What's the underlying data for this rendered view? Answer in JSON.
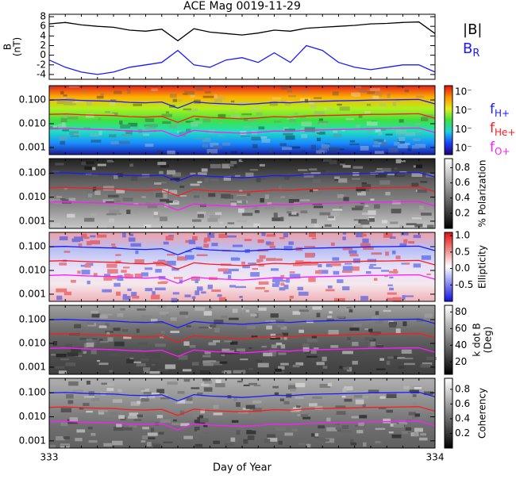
{
  "chart_data": {
    "type": "multi-panel",
    "title": "ACE Mag 0019-11-29",
    "xlabel": "Day of Year",
    "xlim": [
      333,
      334
    ],
    "xticks": [
      333,
      334
    ],
    "x": [
      333,
      333.0417,
      333.0833,
      333.125,
      333.1667,
      333.2083,
      333.25,
      333.2917,
      333.3333,
      333.375,
      333.4167,
      333.4583,
      333.5,
      333.5417,
      333.5833,
      333.625,
      333.6667,
      333.7083,
      333.75,
      333.7917,
      333.8333,
      333.875,
      333.9167,
      333.9583,
      334
    ],
    "frequency_lines": [
      {
        "name": "f",
        "sub": "H+",
        "color": "#1a1aff",
        "values": [
          0.0988,
          0.103,
          0.0958,
          0.0912,
          0.0882,
          0.079,
          0.076,
          0.0821,
          0.0456,
          0.0836,
          0.073,
          0.0684,
          0.0638,
          0.0699,
          0.079,
          0.076,
          0.0851,
          0.0882,
          0.0912,
          0.0942,
          0.0988,
          0.1,
          0.103,
          0.105,
          0.0684
        ]
      },
      {
        "name": "f",
        "sub": "He+",
        "color": "#ff1a1a",
        "values": [
          0.0247,
          0.0258,
          0.024,
          0.0228,
          0.0221,
          0.0198,
          0.019,
          0.0205,
          0.0114,
          0.0209,
          0.0183,
          0.0171,
          0.016,
          0.0175,
          0.0198,
          0.019,
          0.0213,
          0.0221,
          0.0228,
          0.0236,
          0.0247,
          0.025,
          0.0258,
          0.0263,
          0.0171
        ]
      },
      {
        "name": "f",
        "sub": "O+",
        "color": "#ff1aff",
        "values": [
          0.00618,
          0.00645,
          0.00599,
          0.0057,
          0.00551,
          0.00494,
          0.00475,
          0.00513,
          0.00285,
          0.00523,
          0.00456,
          0.00428,
          0.00399,
          0.00437,
          0.00494,
          0.00475,
          0.00532,
          0.00551,
          0.0057,
          0.00589,
          0.00618,
          0.00625,
          0.00645,
          0.00656,
          0.00428
        ]
      }
    ],
    "panels": [
      {
        "type": "line",
        "ylabel": [
          "B",
          "(nT)"
        ],
        "ylim": [
          -5,
          8.5
        ],
        "yticks": [
          8,
          6,
          4,
          2,
          0,
          -2,
          -4
        ],
        "series": [
          {
            "name": "|B|",
            "color": "#000000",
            "values": [
              6.5,
              6.8,
              6.3,
              6.0,
              5.8,
              5.2,
              5.0,
              5.4,
              3.0,
              5.5,
              4.8,
              4.5,
              4.2,
              4.6,
              5.2,
              5.0,
              5.6,
              5.8,
              6.0,
              6.2,
              6.5,
              6.6,
              6.8,
              6.9,
              4.5
            ]
          },
          {
            "name": "B",
            "sub": "R",
            "color": "#1a1aff",
            "values": [
              -1.0,
              -2.5,
              -3.5,
              -4.0,
              -3.5,
              -2.5,
              -2.0,
              -1.5,
              1.0,
              -2.0,
              -2.5,
              -1.0,
              -0.5,
              -1.5,
              0.5,
              -1.5,
              2.0,
              1.0,
              -1.5,
              -2.5,
              -3.0,
              -2.5,
              -2.0,
              -2.0,
              -3.5
            ]
          }
        ]
      },
      {
        "type": "spectrogram",
        "ylog": true,
        "ylim": [
          0.0005,
          0.4
        ],
        "yticks": [
          0.001,
          {
            "value": 0.01,
            "label": "0.010"
          },
          {
            "value": 0.1,
            "label": "0.100"
          }
        ],
        "colors": [
          "#1a1aa0",
          "#1a8cff",
          "#20e0c0",
          "#40e040",
          "#b0f020",
          "#ffb000",
          "#e02020"
        ],
        "colorbar": {
          "tick_labels": [
            "10⁻",
            "10⁻",
            "10⁻",
            "10⁻"
          ],
          "colors": [
            "#200070",
            "#1a40ff",
            "#20d0e0",
            "#40e040",
            "#e0f020",
            "#ff9000",
            "#e01010"
          ]
        }
      },
      {
        "type": "spectrogram",
        "ylog": true,
        "ylim": [
          0.0005,
          0.4
        ],
        "yticks": [
          0.001,
          {
            "value": 0.01,
            "label": "0.010"
          },
          {
            "value": 0.1,
            "label": "0.100"
          }
        ],
        "colors": [
          "#c8c8c8",
          "#8a8a8a",
          "#606060",
          "#202020"
        ],
        "colorbar": {
          "label": [
            "% Polarization"
          ],
          "clim": [
            0,
            0.92
          ],
          "ticks": [
            0.2,
            0.4,
            0.6,
            0.8
          ],
          "colors": [
            "#000000",
            "#ffffff"
          ]
        }
      },
      {
        "type": "spectrogram",
        "ylog": true,
        "ylim": [
          0.0005,
          0.4
        ],
        "yticks": [
          0.001,
          {
            "value": 0.01,
            "label": "0.010"
          },
          {
            "value": 0.1,
            "label": "0.100"
          }
        ],
        "colors": [
          "#f0b0b8",
          "#f4e8ec",
          "#e8e0f8",
          "#b8c0f4",
          "#f0a0a8"
        ],
        "colorbar": {
          "label": [
            "Ellipticity"
          ],
          "clim": [
            -1,
            1.1
          ],
          "ticks": [
            -0.5,
            {
              "value": 0,
              "label": "0.0"
            },
            0.5,
            {
              "value": 1,
              "label": "1.0"
            }
          ],
          "colors": [
            "#1010e0",
            "#ffffff",
            "#e01010"
          ]
        }
      },
      {
        "type": "spectrogram",
        "ylog": true,
        "ylim": [
          0.0005,
          0.4
        ],
        "yticks": [
          0.001,
          {
            "value": 0.01,
            "label": "0.010"
          },
          {
            "value": 0.1,
            "label": "0.100"
          }
        ],
        "colors": [
          "#404040",
          "#505050",
          "#707070",
          "#a0a0a0"
        ],
        "colorbar": {
          "label": [
            "k dot B",
            "(Deg)"
          ],
          "clim": [
            5,
            88
          ],
          "ticks": [
            20,
            40,
            60,
            80
          ],
          "colors": [
            "#000000",
            "#ffffff"
          ]
        }
      },
      {
        "type": "spectrogram",
        "ylog": true,
        "ylim": [
          0.0005,
          0.4
        ],
        "yticks": [
          0.001,
          {
            "value": 0.01,
            "label": "0.010"
          },
          {
            "value": 0.1,
            "label": "0.100"
          }
        ],
        "colors": [
          "#606060",
          "#707070",
          "#909090",
          "#b0b0b0"
        ],
        "colorbar": {
          "label": [
            "Coherency"
          ],
          "clim": [
            0,
            0.95
          ],
          "ticks": [
            0.2,
            0.4,
            0.6,
            0.8
          ],
          "colors": [
            "#000000",
            "#ffffff"
          ]
        }
      }
    ]
  }
}
